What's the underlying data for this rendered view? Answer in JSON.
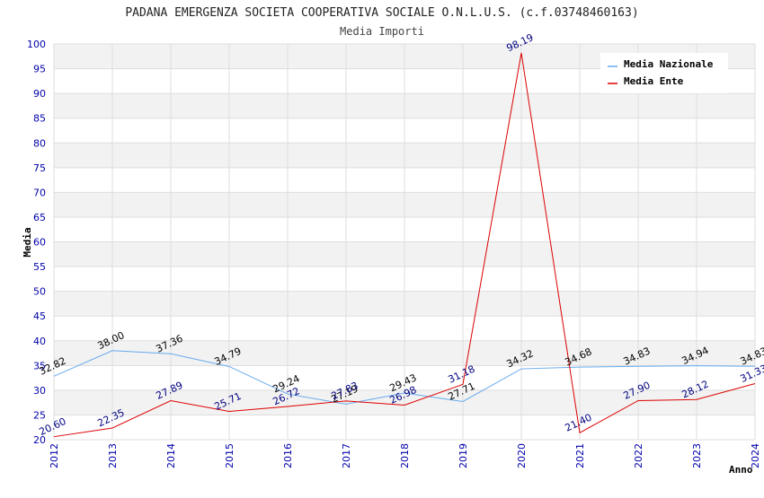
{
  "chart_data": {
    "type": "line",
    "title": "PADANA EMERGENZA SOCIETA COOPERATIVA SOCIALE O.N.L.U.S. (c.f.03748460163)",
    "subtitle": "Media Importi",
    "xlabel": "Anno",
    "ylabel": "Media",
    "ylim": [
      20,
      100
    ],
    "y_ticks": [
      "20",
      "25",
      "30",
      "35",
      "40",
      "45",
      "50",
      "55",
      "60",
      "65",
      "70",
      "75",
      "80",
      "85",
      "90",
      "95",
      "100"
    ],
    "categories": [
      "2012",
      "2013",
      "2014",
      "2015",
      "2016",
      "2017",
      "2018",
      "2019",
      "2020",
      "2021",
      "2022",
      "2023",
      "2024"
    ],
    "grid": true,
    "legend_position": "top-right",
    "series": [
      {
        "name": "Media Nazionale",
        "color": "#66aaee",
        "label_color": "#000000",
        "values": [
          32.82,
          38.0,
          37.36,
          34.79,
          29.24,
          27.19,
          29.43,
          27.71,
          34.32,
          34.68,
          34.83,
          34.94,
          34.83
        ],
        "labels": [
          "32.82",
          "38.00",
          "37.36",
          "34.79",
          "29.24",
          "27.19",
          "29.43",
          "27.71",
          "34.32",
          "34.68",
          "34.83",
          "34.94",
          "34.83"
        ]
      },
      {
        "name": "Media Ente",
        "color": "#dd0000",
        "label_color": "#000080",
        "values": [
          20.6,
          22.35,
          27.89,
          25.71,
          26.72,
          27.83,
          26.98,
          31.18,
          98.19,
          21.4,
          27.9,
          28.12,
          31.33
        ],
        "labels": [
          "20.60",
          "22.35",
          "27.89",
          "25.71",
          "26.72",
          "27.83",
          "26.98",
          "31.18",
          "98.19",
          "21.40",
          "27.90",
          "28.12",
          "31.33"
        ]
      }
    ]
  }
}
